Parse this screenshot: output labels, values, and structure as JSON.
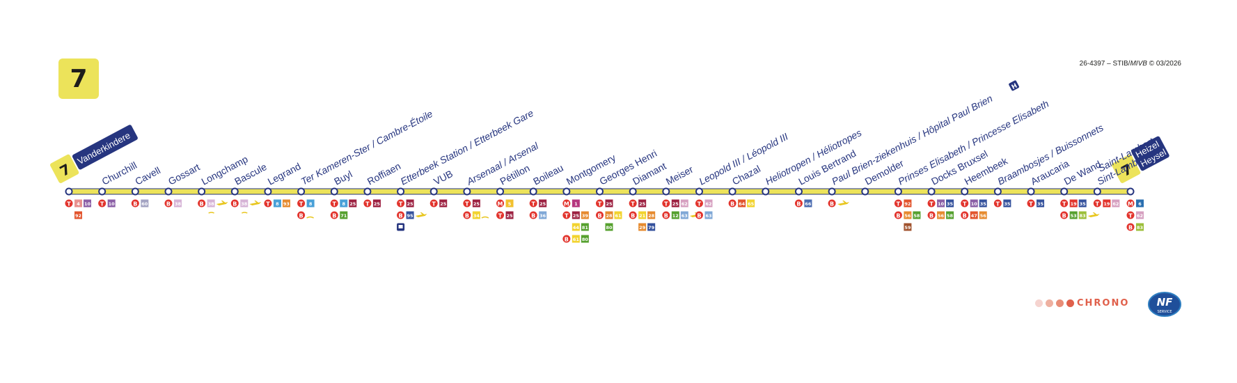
{
  "line": {
    "number": "7",
    "color": "#ece35a"
  },
  "doc_ref": {
    "prefix": "26-4397 – STIB/",
    "mivb": "MIVB",
    "suffix": " © 03/2026"
  },
  "colors": {
    "navy": "#26357f",
    "tram": "#e2342d",
    "line_yellow": "#ece35a"
  },
  "terminus_start": {
    "line": "7",
    "name": "Vanderkindere"
  },
  "terminus_end": {
    "line": "7",
    "name_1": "Heizel",
    "name_2": "Heysel"
  },
  "stops": [
    {
      "name": "",
      "conn": [
        {
          "mode": "T",
          "lines": [
            {
              "n": "4",
              "c": "#e8918f"
            },
            {
              "n": "10",
              "c": "#8b5fa6"
            }
          ]
        },
        {
          "mode": "",
          "lines": [
            {
              "n": "92",
              "c": "#e2542d"
            }
          ]
        }
      ]
    },
    {
      "name": "Churchill",
      "conn": [
        {
          "mode": "T",
          "lines": [
            {
              "n": "10",
              "c": "#8b5fa6"
            }
          ]
        }
      ]
    },
    {
      "name": "Cavell",
      "conn": [
        {
          "mode": "B",
          "lines": [
            {
              "n": "60",
              "c": "#a3a3c2"
            }
          ]
        }
      ]
    },
    {
      "name": "Gossart",
      "conn": [
        {
          "mode": "B",
          "lines": [
            {
              "n": "38",
              "c": "#d6b3d6"
            }
          ]
        }
      ]
    },
    {
      "name": "Longchamp",
      "conn": [
        {
          "mode": "B",
          "lines": [
            {
              "n": "38",
              "c": "#d6b3d6"
            }
          ],
          "extra": "plane"
        }
      ],
      "note": "~"
    },
    {
      "name": "Bascule",
      "conn": [
        {
          "mode": "B",
          "lines": [
            {
              "n": "38",
              "c": "#d6b3d6"
            }
          ],
          "extra": "plane"
        }
      ],
      "note": "~"
    },
    {
      "name": "Legrand",
      "conn": [
        {
          "mode": "T",
          "lines": [
            {
              "n": "8",
              "c": "#48a0d8"
            },
            {
              "n": "93",
              "c": "#e68a2e"
            }
          ]
        }
      ]
    },
    {
      "name": "Ter Kameren-Ster / Cambre-Étoile",
      "italic": true,
      "conn": [
        {
          "mode": "T",
          "lines": [
            {
              "n": "8",
              "c": "#48a0d8"
            }
          ]
        },
        {
          "mode": "B",
          "lines": [],
          "extra": "train"
        }
      ]
    },
    {
      "name": "Buyl",
      "conn": [
        {
          "mode": "T",
          "lines": [
            {
              "n": "8",
              "c": "#48a0d8"
            },
            {
              "n": "25",
              "c": "#9c2040"
            }
          ]
        },
        {
          "mode": "B",
          "lines": [
            {
              "n": "71",
              "c": "#55a02e"
            }
          ]
        }
      ]
    },
    {
      "name": "Roffiaen",
      "conn": [
        {
          "mode": "T",
          "lines": [
            {
              "n": "25",
              "c": "#9c2040"
            }
          ]
        }
      ]
    },
    {
      "name": "Etterbeek Station / Etterbeek Gare",
      "italic": true,
      "conn": [
        {
          "mode": "T",
          "lines": [
            {
              "n": "25",
              "c": "#9c2040"
            }
          ]
        },
        {
          "mode": "B",
          "lines": [
            {
              "n": "95",
              "c": "#34519c"
            }
          ],
          "extra": "plane"
        },
        {
          "mode": "",
          "lines": [],
          "extra": "train-box"
        }
      ]
    },
    {
      "name": "VUB",
      "conn": [
        {
          "mode": "T",
          "lines": [
            {
              "n": "25",
              "c": "#9c2040"
            }
          ]
        }
      ]
    },
    {
      "name": "Arsenaal / Arsenal",
      "italic": true,
      "conn": [
        {
          "mode": "T",
          "lines": [
            {
              "n": "25",
              "c": "#9c2040"
            }
          ]
        },
        {
          "mode": "B",
          "lines": [
            {
              "n": "34",
              "c": "#f2d32e"
            }
          ],
          "extra": "train"
        }
      ]
    },
    {
      "name": "Pétillon",
      "conn": [
        {
          "mode": "M",
          "lines": [
            {
              "n": "5",
              "c": "#f2c12e"
            }
          ]
        },
        {
          "mode": "T",
          "lines": [
            {
              "n": "25",
              "c": "#9c2040"
            }
          ]
        }
      ]
    },
    {
      "name": "Boileau",
      "conn": [
        {
          "mode": "T",
          "lines": [
            {
              "n": "25",
              "c": "#9c2040"
            }
          ]
        },
        {
          "mode": "B",
          "lines": [
            {
              "n": "36",
              "c": "#7fa7d6"
            }
          ]
        }
      ]
    },
    {
      "name": "Montgomery",
      "conn": [
        {
          "mode": "M",
          "lines": [
            {
              "n": "1",
              "c": "#b5367e"
            }
          ]
        },
        {
          "mode": "T",
          "lines": [
            {
              "n": "25",
              "c": "#9c2040"
            },
            {
              "n": "39",
              "c": "#e68a2e"
            }
          ]
        },
        {
          "mode": "",
          "lines": [
            {
              "n": "44",
              "c": "#f2d32e"
            },
            {
              "n": "81",
              "c": "#55a02e"
            }
          ]
        },
        {
          "mode": "B",
          "lines": [
            {
              "n": "61",
              "c": "#f2d32e"
            },
            {
              "n": "80",
              "c": "#55a02e"
            }
          ]
        }
      ]
    },
    {
      "name": "Georges Henri",
      "conn": [
        {
          "mode": "T",
          "lines": [
            {
              "n": "25",
              "c": "#9c2040"
            }
          ]
        },
        {
          "mode": "B",
          "lines": [
            {
              "n": "28",
              "c": "#e68a2e"
            },
            {
              "n": "61",
              "c": "#f2d32e"
            }
          ]
        },
        {
          "mode": "",
          "lines": [
            {
              "n": "80",
              "c": "#55a02e"
            }
          ]
        }
      ]
    },
    {
      "name": "Diamant",
      "conn": [
        {
          "mode": "T",
          "lines": [
            {
              "n": "25",
              "c": "#9c2040"
            }
          ]
        },
        {
          "mode": "B",
          "lines": [
            {
              "n": "21",
              "c": "#f2d32e"
            },
            {
              "n": "28",
              "c": "#e68a2e"
            }
          ]
        },
        {
          "mode": "",
          "lines": [
            {
              "n": "29",
              "c": "#e68a2e"
            },
            {
              "n": "79",
              "c": "#34519c"
            }
          ]
        }
      ]
    },
    {
      "name": "Meiser",
      "conn": [
        {
          "mode": "T",
          "lines": [
            {
              "n": "25",
              "c": "#9c2040"
            },
            {
              "n": "62",
              "c": "#d6a0c0"
            }
          ]
        },
        {
          "mode": "B",
          "lines": [
            {
              "n": "12",
              "c": "#55a02e"
            },
            {
              "n": "63",
              "c": "#7fa7d6"
            }
          ],
          "extra": "plane"
        }
      ]
    },
    {
      "name": "Leopold III / Léopold III",
      "italic": true,
      "conn": [
        {
          "mode": "T",
          "lines": [
            {
              "n": "62",
              "c": "#d6a0c0"
            }
          ]
        },
        {
          "mode": "B",
          "lines": [
            {
              "n": "63",
              "c": "#7fa7d6"
            }
          ]
        }
      ]
    },
    {
      "name": "Chazal",
      "conn": [
        {
          "mode": "B",
          "lines": [
            {
              "n": "64",
              "c": "#e2542d"
            },
            {
              "n": "65",
              "c": "#f2d32e"
            }
          ]
        }
      ]
    },
    {
      "name": "Heliotropen / Héliotropes",
      "italic": true,
      "conn": []
    },
    {
      "name": "Louis Bertrand",
      "conn": [
        {
          "mode": "B",
          "lines": [
            {
              "n": "66",
              "c": "#4a6bb0"
            }
          ]
        }
      ]
    },
    {
      "name": "Paul Brien-ziekenhuis / Hôpital Paul Brien",
      "italic": true,
      "hospital": "H",
      "conn": [
        {
          "mode": "B",
          "lines": [],
          "extra": "plane"
        }
      ]
    },
    {
      "name": "Demolder",
      "conn": []
    },
    {
      "name": "Prinses Elisabeth / Princesse Elisabeth",
      "italic": true,
      "conn": [
        {
          "mode": "T",
          "lines": [
            {
              "n": "92",
              "c": "#e2542d"
            }
          ]
        },
        {
          "mode": "B",
          "lines": [
            {
              "n": "56",
              "c": "#e68a2e"
            },
            {
              "n": "58",
              "c": "#55a02e"
            }
          ]
        },
        {
          "mode": "",
          "lines": [
            {
              "n": "59",
              "c": "#a0522d"
            }
          ]
        }
      ]
    },
    {
      "name": "Docks Bruxsel",
      "conn": [
        {
          "mode": "T",
          "lines": [
            {
              "n": "10",
              "c": "#8b5fa6"
            },
            {
              "n": "35",
              "c": "#34519c"
            }
          ]
        },
        {
          "mode": "B",
          "lines": [
            {
              "n": "56",
              "c": "#e68a2e"
            },
            {
              "n": "58",
              "c": "#55a02e"
            }
          ]
        }
      ]
    },
    {
      "name": "Heembeek",
      "conn": [
        {
          "mode": "T",
          "lines": [
            {
              "n": "10",
              "c": "#8b5fa6"
            },
            {
              "n": "35",
              "c": "#34519c"
            }
          ]
        },
        {
          "mode": "B",
          "lines": [
            {
              "n": "47",
              "c": "#e2542d"
            },
            {
              "n": "56",
              "c": "#e68a2e"
            }
          ]
        }
      ]
    },
    {
      "name": "Braambosjes / Buissonnets",
      "italic": true,
      "conn": [
        {
          "mode": "T",
          "lines": [
            {
              "n": "35",
              "c": "#34519c"
            }
          ]
        }
      ]
    },
    {
      "name": "Araucaria",
      "conn": [
        {
          "mode": "T",
          "lines": [
            {
              "n": "35",
              "c": "#34519c"
            }
          ]
        }
      ]
    },
    {
      "name": "De Wand",
      "conn": [
        {
          "mode": "T",
          "lines": [
            {
              "n": "19",
              "c": "#e2342d"
            },
            {
              "n": "35",
              "c": "#34519c"
            }
          ]
        },
        {
          "mode": "B",
          "lines": [
            {
              "n": "53",
              "c": "#55a02e"
            },
            {
              "n": "83",
              "c": "#9cbf3a"
            }
          ],
          "extra": "plane"
        }
      ]
    },
    {
      "name": "Sint-Lambertus",
      "name2": "Saint-Lambert",
      "italic": true,
      "conn": [
        {
          "mode": "T",
          "lines": [
            {
              "n": "19",
              "c": "#e2342d"
            },
            {
              "n": "62",
              "c": "#d6a0c0"
            }
          ]
        }
      ]
    },
    {
      "name": "",
      "conn": [
        {
          "mode": "M",
          "lines": [
            {
              "n": "6",
              "c": "#2a6fb0"
            }
          ]
        },
        {
          "mode": "T",
          "lines": [
            {
              "n": "62",
              "c": "#d6a0c0"
            }
          ]
        },
        {
          "mode": "B",
          "lines": [
            {
              "n": "83",
              "c": "#9cbf3a"
            }
          ]
        }
      ]
    }
  ],
  "footer": {
    "chrono": "CHRONO",
    "nf_top": "NF",
    "nf_bottom": "SERVICE"
  }
}
